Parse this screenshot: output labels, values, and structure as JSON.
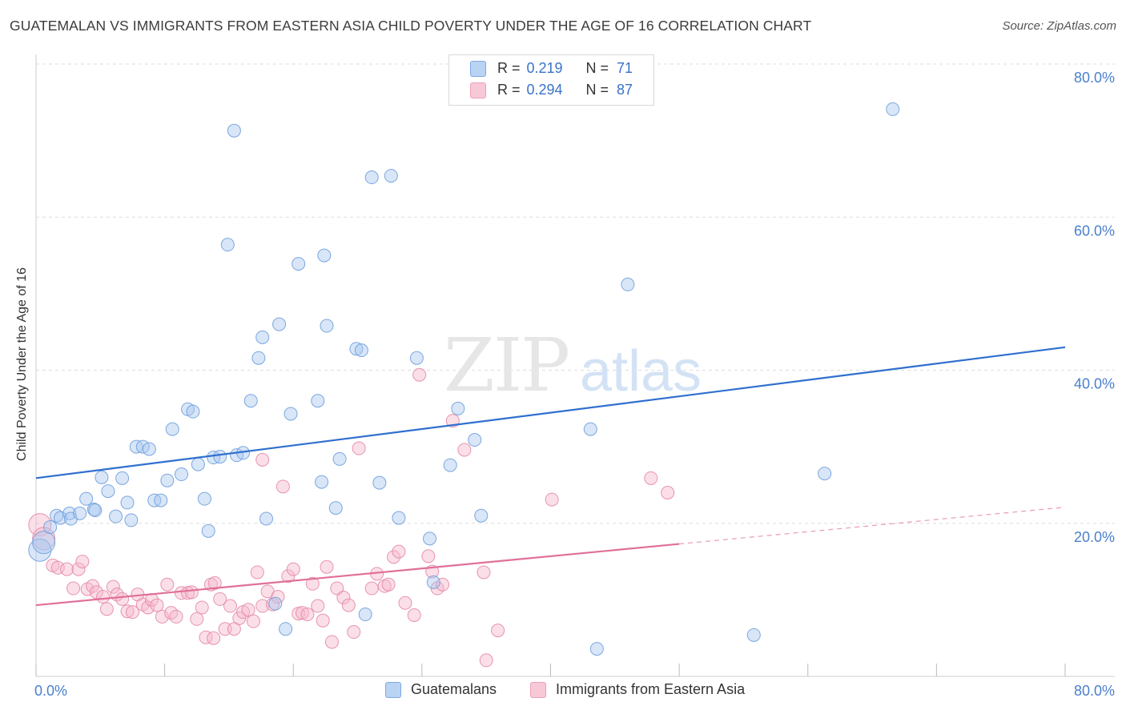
{
  "title": "GUATEMALAN VS IMMIGRANTS FROM EASTERN ASIA CHILD POVERTY UNDER THE AGE OF 16 CORRELATION CHART",
  "source": "Source: ZipAtlas.com",
  "watermark": {
    "zip": "ZIP",
    "atlas": "atlas"
  },
  "colors": {
    "blue_fill": "#a8c8f0",
    "blue_stroke": "#6f9fdc",
    "blue_line": "#2f6fcf",
    "pink_fill": "#f6b8cb",
    "pink_stroke": "#e48aa6",
    "pink_line": "#e0709a",
    "tick_label": "#4a80cc",
    "grid": "#dddddd"
  },
  "legend": {
    "r_label": "R =",
    "n_label": "N =",
    "rows": [
      {
        "r": "0.219",
        "n": "71",
        "color": "blue"
      },
      {
        "r": "0.294",
        "n": "87",
        "color": "pink"
      }
    ]
  },
  "chart_data": {
    "type": "scatter",
    "title": "GUATEMALAN VS IMMIGRANTS FROM EASTERN ASIA CHILD POVERTY UNDER THE AGE OF 16 CORRELATION CHART",
    "xlabel": "",
    "ylabel": "Child Poverty Under the Age of 16",
    "xlim": [
      0,
      80
    ],
    "ylim": [
      0,
      80
    ],
    "x_tick_labels": [
      "0.0%",
      "80.0%"
    ],
    "y_tick_labels": [
      "20.0%",
      "40.0%",
      "60.0%",
      "80.0%"
    ],
    "y_ticks": [
      20,
      40,
      60,
      80
    ],
    "grid": true,
    "legend_position": "top-center",
    "series": [
      {
        "name": "Guatemalans",
        "color": "blue",
        "trend": {
          "x0": 0,
          "y0": 25.9,
          "x1": 80,
          "y1": 43.0,
          "dashed_from": null
        },
        "points": [
          [
            0.3,
            16.5
          ],
          [
            0.6,
            17.5
          ],
          [
            1.1,
            19.5
          ],
          [
            1.6,
            21.0
          ],
          [
            1.9,
            20.7
          ],
          [
            2.6,
            21.3
          ],
          [
            2.7,
            20.6
          ],
          [
            3.4,
            21.3
          ],
          [
            3.9,
            23.2
          ],
          [
            4.5,
            21.8
          ],
          [
            4.6,
            21.7
          ],
          [
            5.1,
            26.0
          ],
          [
            5.6,
            24.2
          ],
          [
            6.2,
            20.9
          ],
          [
            6.7,
            25.9
          ],
          [
            7.1,
            22.7
          ],
          [
            7.4,
            20.4
          ],
          [
            7.8,
            30.0
          ],
          [
            8.3,
            30.0
          ],
          [
            8.8,
            29.7
          ],
          [
            9.2,
            23.0
          ],
          [
            9.7,
            23.0
          ],
          [
            10.2,
            25.6
          ],
          [
            10.6,
            32.3
          ],
          [
            11.3,
            26.4
          ],
          [
            11.8,
            34.9
          ],
          [
            12.2,
            34.6
          ],
          [
            12.6,
            27.7
          ],
          [
            13.1,
            23.2
          ],
          [
            13.4,
            19.0
          ],
          [
            13.8,
            28.6
          ],
          [
            14.3,
            28.7
          ],
          [
            14.9,
            56.4
          ],
          [
            15.4,
            71.3
          ],
          [
            15.6,
            28.9
          ],
          [
            16.1,
            29.2
          ],
          [
            16.7,
            36.0
          ],
          [
            17.3,
            41.6
          ],
          [
            17.6,
            44.3
          ],
          [
            17.9,
            20.6
          ],
          [
            18.9,
            46.0
          ],
          [
            18.6,
            9.5
          ],
          [
            19.4,
            6.2
          ],
          [
            19.8,
            34.3
          ],
          [
            20.4,
            53.9
          ],
          [
            21.9,
            36.0
          ],
          [
            22.2,
            25.4
          ],
          [
            22.4,
            55.0
          ],
          [
            22.6,
            45.8
          ],
          [
            23.3,
            22.0
          ],
          [
            23.6,
            28.4
          ],
          [
            24.9,
            42.8
          ],
          [
            25.3,
            42.6
          ],
          [
            25.6,
            8.1
          ],
          [
            26.1,
            65.2
          ],
          [
            26.7,
            25.3
          ],
          [
            27.6,
            65.4
          ],
          [
            28.2,
            20.7
          ],
          [
            29.6,
            41.6
          ],
          [
            30.6,
            18.0
          ],
          [
            30.9,
            12.3
          ],
          [
            32.2,
            27.6
          ],
          [
            32.8,
            35.0
          ],
          [
            34.1,
            30.9
          ],
          [
            34.6,
            21.0
          ],
          [
            43.1,
            32.3
          ],
          [
            43.6,
            3.6
          ],
          [
            46.0,
            51.2
          ],
          [
            55.8,
            5.4
          ],
          [
            61.3,
            26.5
          ],
          [
            66.6,
            74.1
          ]
        ]
      },
      {
        "name": "Immigrants from Eastern Asia",
        "color": "pink",
        "trend": {
          "x0": 0,
          "y0": 9.3,
          "x1": 80,
          "y1": 22.1,
          "dashed_from": 50
        },
        "points": [
          [
            0.3,
            19.8
          ],
          [
            0.6,
            18.0
          ],
          [
            1.3,
            14.5
          ],
          [
            1.7,
            14.2
          ],
          [
            2.4,
            14.0
          ],
          [
            2.9,
            11.5
          ],
          [
            3.3,
            14.0
          ],
          [
            3.6,
            15.0
          ],
          [
            4.0,
            11.4
          ],
          [
            4.4,
            11.8
          ],
          [
            4.7,
            11.0
          ],
          [
            5.2,
            10.4
          ],
          [
            5.5,
            8.8
          ],
          [
            6.0,
            11.7
          ],
          [
            6.3,
            10.7
          ],
          [
            6.7,
            10.1
          ],
          [
            7.1,
            8.5
          ],
          [
            7.5,
            8.4
          ],
          [
            7.9,
            10.7
          ],
          [
            8.3,
            9.4
          ],
          [
            8.7,
            9.0
          ],
          [
            9.0,
            10.0
          ],
          [
            9.4,
            9.3
          ],
          [
            9.8,
            7.8
          ],
          [
            10.2,
            12.0
          ],
          [
            10.5,
            8.3
          ],
          [
            10.9,
            7.8
          ],
          [
            11.3,
            10.9
          ],
          [
            11.8,
            10.9
          ],
          [
            12.1,
            11.0
          ],
          [
            12.5,
            7.5
          ],
          [
            12.9,
            9.0
          ],
          [
            13.2,
            5.1
          ],
          [
            13.6,
            12.0
          ],
          [
            13.9,
            12.2
          ],
          [
            14.3,
            10.1
          ],
          [
            14.7,
            6.2
          ],
          [
            15.1,
            9.2
          ],
          [
            15.4,
            6.2
          ],
          [
            15.8,
            7.6
          ],
          [
            16.1,
            8.4
          ],
          [
            16.5,
            8.7
          ],
          [
            16.9,
            7.2
          ],
          [
            17.2,
            13.6
          ],
          [
            17.6,
            9.2
          ],
          [
            18.0,
            11.1
          ],
          [
            18.4,
            9.4
          ],
          [
            18.8,
            10.4
          ],
          [
            19.2,
            24.8
          ],
          [
            19.6,
            13.1
          ],
          [
            20.0,
            14.0
          ],
          [
            20.4,
            8.2
          ],
          [
            20.7,
            8.3
          ],
          [
            21.1,
            8.1
          ],
          [
            21.5,
            12.1
          ],
          [
            21.9,
            9.2
          ],
          [
            22.3,
            7.3
          ],
          [
            22.6,
            14.3
          ],
          [
            23.0,
            4.5
          ],
          [
            23.4,
            11.5
          ],
          [
            23.9,
            10.3
          ],
          [
            24.3,
            9.3
          ],
          [
            24.7,
            5.8
          ],
          [
            25.1,
            29.8
          ],
          [
            26.1,
            11.5
          ],
          [
            26.5,
            13.4
          ],
          [
            27.1,
            11.8
          ],
          [
            27.4,
            12.0
          ],
          [
            27.8,
            15.6
          ],
          [
            28.2,
            16.3
          ],
          [
            28.7,
            9.6
          ],
          [
            29.4,
            8.0
          ],
          [
            29.8,
            39.4
          ],
          [
            30.5,
            15.7
          ],
          [
            30.8,
            13.7
          ],
          [
            31.2,
            11.5
          ],
          [
            31.6,
            12.0
          ],
          [
            32.4,
            33.4
          ],
          [
            33.3,
            29.6
          ],
          [
            34.8,
            13.6
          ],
          [
            35.0,
            2.1
          ],
          [
            35.9,
            6.0
          ],
          [
            40.1,
            23.1
          ],
          [
            47.8,
            25.9
          ],
          [
            49.1,
            24.0
          ],
          [
            13.8,
            5.0
          ],
          [
            17.6,
            28.3
          ]
        ]
      }
    ]
  }
}
